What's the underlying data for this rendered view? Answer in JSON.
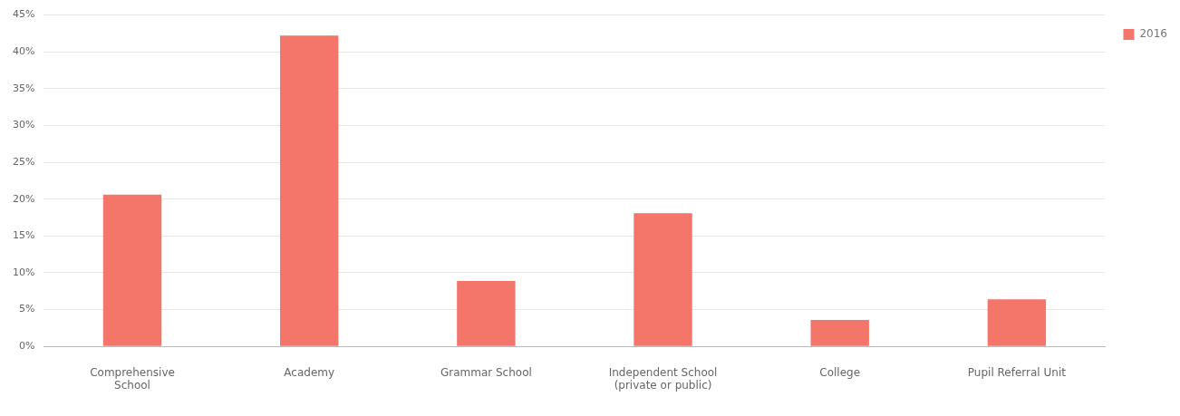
{
  "chart_data": {
    "type": "bar",
    "categories": [
      "Comprehensive School",
      "Academy",
      "Grammar School",
      "Independent School (private or public)",
      "College",
      "Pupil Referral Unit"
    ],
    "series": [
      {
        "name": "2016",
        "color": "#f4756a",
        "values": [
          20.6,
          42.2,
          8.9,
          18.1,
          3.6,
          6.4
        ]
      }
    ],
    "ylim": [
      0,
      45
    ],
    "yticks": [
      {
        "value": 0,
        "label": "0%"
      },
      {
        "value": 5,
        "label": "5%"
      },
      {
        "value": 10,
        "label": "10%"
      },
      {
        "value": 15,
        "label": "15%"
      },
      {
        "value": 20,
        "label": "20%"
      },
      {
        "value": 25,
        "label": "25%"
      },
      {
        "value": 30,
        "label": "30%"
      },
      {
        "value": 35,
        "label": "35%"
      },
      {
        "value": 40,
        "label": "40%"
      },
      {
        "value": 45,
        "label": "45%"
      }
    ],
    "grid": "y",
    "legend": "top right"
  }
}
